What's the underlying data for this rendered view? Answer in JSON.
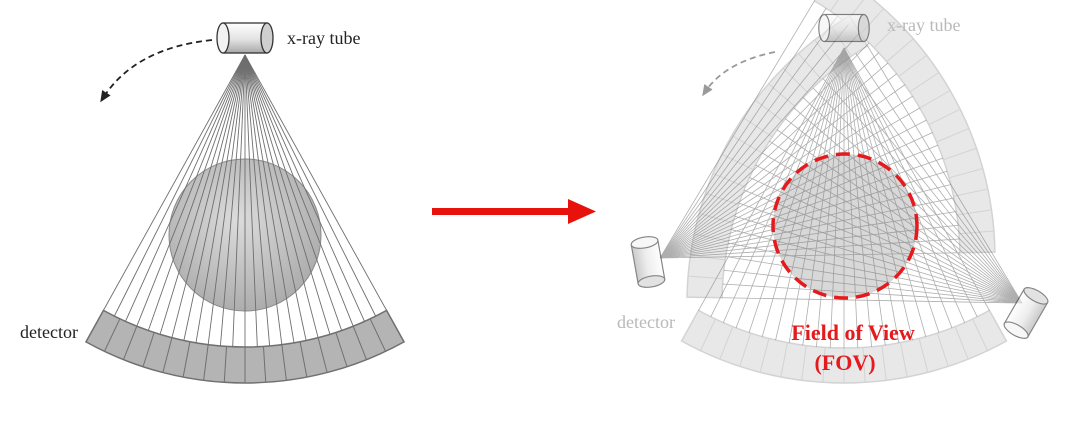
{
  "left_panel": {
    "tube_label": "x-ray tube",
    "detector_label": "detector"
  },
  "right_panel": {
    "tube_label": "x-ray tube",
    "detector_label": "detector",
    "fov_line1": "Field of View",
    "fov_line2": "(FOV)"
  },
  "colors": {
    "arrow": "#e8120c",
    "fov_circle": "#e41a1c",
    "fov_text": "#e41a1c",
    "detector_fill": "#b4b4b4",
    "ray": "#6e6e6e"
  }
}
